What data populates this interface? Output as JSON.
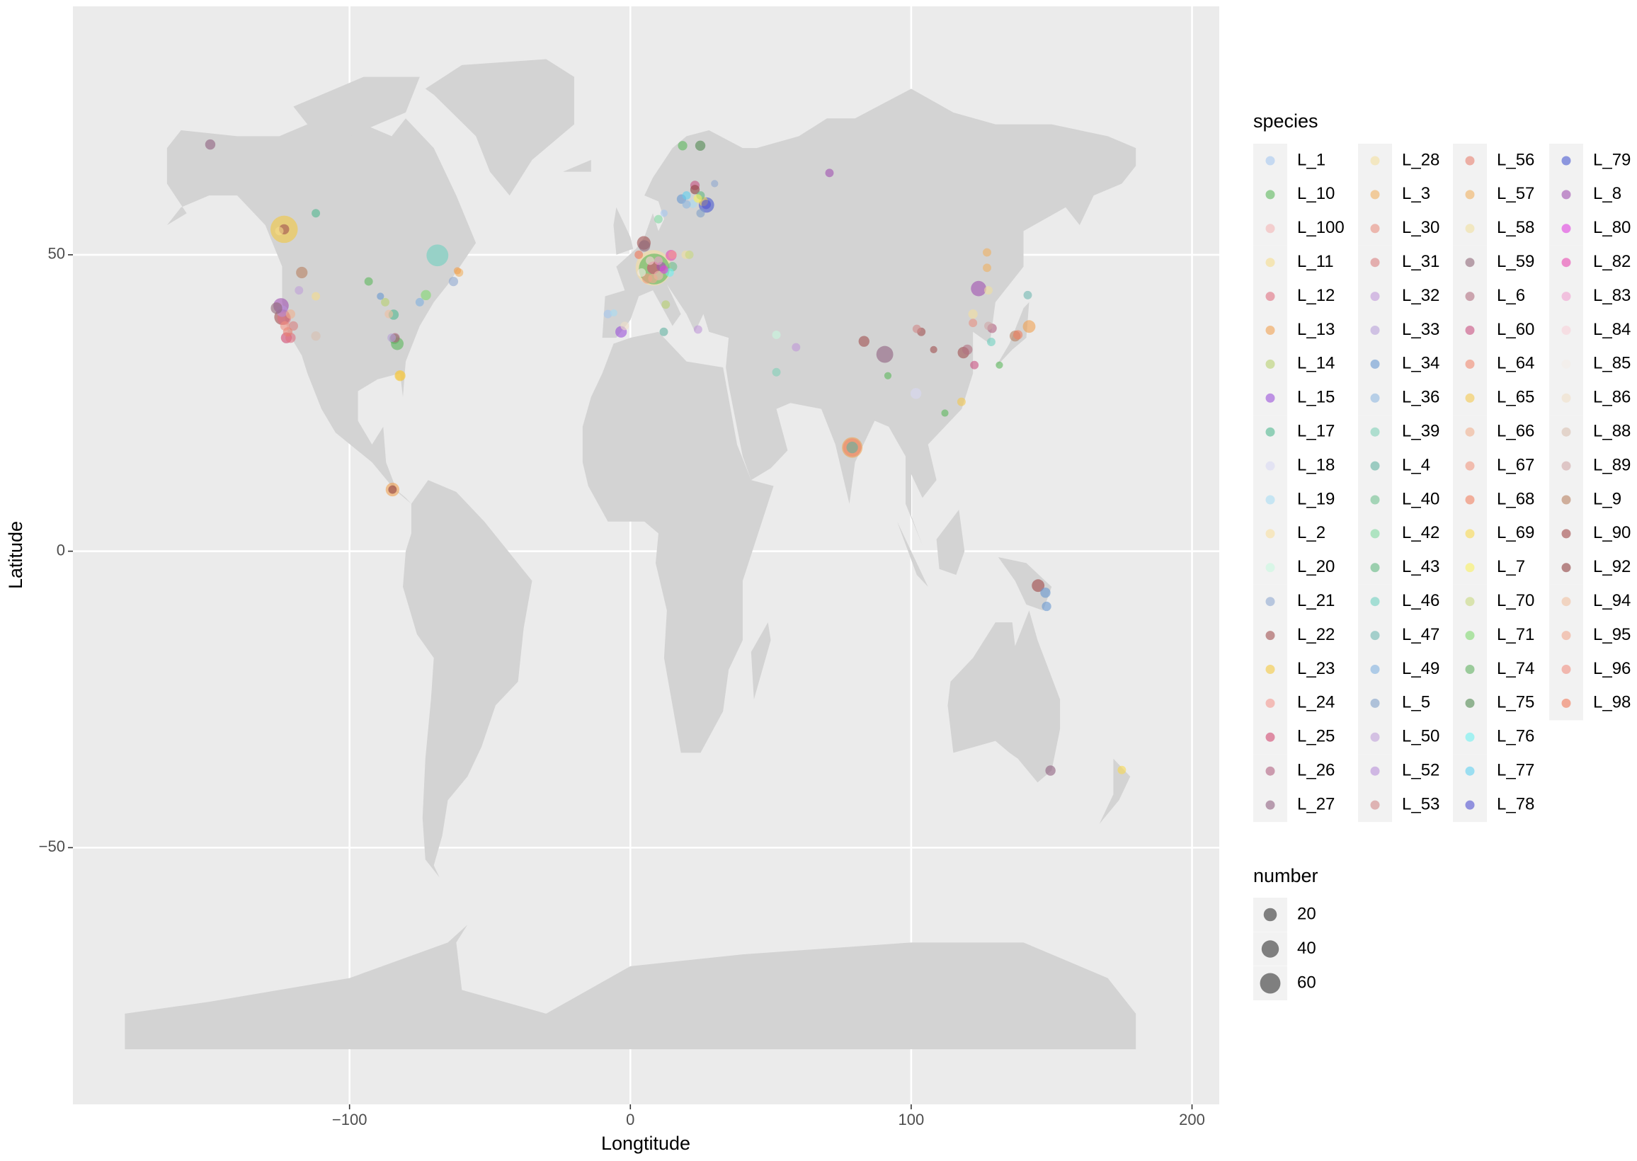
{
  "chart_data": {
    "type": "scatter",
    "x_label": "Longtitude",
    "y_label": "Latitude",
    "xlim": [
      -198.5,
      209.7
    ],
    "ylim": [
      -93.3,
      91.9
    ],
    "xticks": [
      {
        "value": -100,
        "label": "−100"
      },
      0,
      100,
      200
    ],
    "yticks": [
      {
        "value": -50,
        "label": "−50"
      },
      0,
      50
    ],
    "grid": true,
    "alpha": 0.6,
    "legend_title": "species",
    "size_legend": {
      "title": "number",
      "values": [
        20,
        40,
        60
      ]
    },
    "series": [
      {
        "name": "L_1",
        "color": "#a6c8f0",
        "x": [
          -8,
          12
        ],
        "values": [
          40,
          57
        ],
        "sizes": [
          2,
          1
        ]
      },
      {
        "name": "L_10",
        "color": "#5cb85c",
        "x": [
          -93.2,
          -83,
          8.5,
          18.6,
          91.7,
          112,
          131.4
        ],
        "values": [
          45.5,
          35,
          47.6,
          68.4,
          29.6,
          23.3,
          31.4
        ],
        "sizes": [
          2,
          8,
          80,
          3,
          1,
          1,
          1
        ]
      },
      {
        "name": "L_100",
        "color": "#f4b6b6",
        "x": [
          10
        ],
        "values": [
          46.5
        ],
        "sizes": [
          3
        ]
      },
      {
        "name": "L_11",
        "color": "#f5dc8c",
        "x": [
          -112,
          -125
        ],
        "values": [
          43,
          54
        ],
        "sizes": [
          2,
          2
        ]
      },
      {
        "name": "L_12",
        "color": "#e07080",
        "x": [
          -123.3,
          -121
        ],
        "values": [
          39.3,
          36
        ],
        "sizes": [
          10,
          4
        ]
      },
      {
        "name": "L_13",
        "color": "#f0a050",
        "x": [
          -84.7,
          -61.6,
          142,
          79
        ],
        "values": [
          10.4,
          47.3,
          37.9,
          17.5
        ],
        "sizes": [
          10,
          1,
          8,
          30
        ]
      },
      {
        "name": "L_14",
        "color": "#b8d070",
        "x": [
          -87.3,
          12.6
        ],
        "values": [
          42,
          41.6
        ],
        "sizes": [
          2,
          2
        ]
      },
      {
        "name": "L_15",
        "color": "#9a50d8",
        "x": [
          -3.3
        ],
        "values": [
          37
        ],
        "sizes": [
          6
        ]
      },
      {
        "name": "L_17",
        "color": "#50b890",
        "x": [
          -112,
          -84.3
        ],
        "values": [
          57,
          39.9
        ],
        "sizes": [
          2,
          4
        ]
      },
      {
        "name": "L_18",
        "color": "#d8d8f4",
        "x": [
          101.7
        ],
        "values": [
          26.6
        ],
        "sizes": [
          5
        ]
      },
      {
        "name": "L_19",
        "color": "#a8dcf4",
        "x": [
          -5.9,
          22.3
        ],
        "values": [
          40.2,
          58.6
        ],
        "sizes": [
          1,
          2
        ]
      },
      {
        "name": "L_2",
        "color": "#f8e0a0",
        "x": [
          8.2
        ],
        "values": [
          47.8
        ],
        "sizes": [
          110
        ]
      },
      {
        "name": "L_20",
        "color": "#c8f8e0",
        "x": [
          52
        ],
        "values": [
          36.5
        ],
        "sizes": [
          2
        ]
      },
      {
        "name": "L_21",
        "color": "#90a8d0",
        "x": [
          -63,
          30
        ],
        "values": [
          45.5,
          62
        ],
        "sizes": [
          3,
          1
        ]
      },
      {
        "name": "L_22",
        "color": "#a05050",
        "x": [
          -123.3,
          4.8,
          83.2,
          103.6,
          108,
          118.6,
          -124
        ],
        "values": [
          54.3,
          52,
          35.4,
          37,
          34,
          33.5,
          39.5
        ],
        "sizes": [
          4,
          10,
          5,
          2,
          1,
          6,
          15
        ]
      },
      {
        "name": "L_23",
        "color": "#f4c840",
        "x": [
          -123.3,
          -82
        ],
        "values": [
          54.3,
          29.6
        ],
        "sizes": [
          60,
          5
        ]
      },
      {
        "name": "L_24",
        "color": "#f49890",
        "x": [
          15
        ],
        "values": [
          50
        ],
        "sizes": [
          2
        ]
      },
      {
        "name": "L_25",
        "color": "#d04870",
        "x": [
          8.2,
          -122.5
        ],
        "values": [
          47.8,
          36
        ],
        "sizes": [
          8,
          5
        ]
      },
      {
        "name": "L_26",
        "color": "#b06080",
        "x": [
          128.8,
          -83.8
        ],
        "values": [
          37.6,
          36
        ],
        "sizes": [
          3,
          3
        ]
      },
      {
        "name": "L_27",
        "color": "#906080",
        "x": [
          -149.6,
          149.6,
          90.6
        ],
        "values": [
          68.6,
          -37,
          33.2
        ],
        "sizes": [
          4,
          4,
          18
        ]
      },
      {
        "name": "L_28",
        "color": "#f4e0a0",
        "x": [
          122
        ],
        "values": [
          40
        ],
        "sizes": [
          3
        ]
      },
      {
        "name": "L_3",
        "color": "#f0b060",
        "x": [
          127
        ],
        "values": [
          50.4
        ],
        "sizes": [
          2
        ]
      },
      {
        "name": "L_30",
        "color": "#e89080",
        "x": [
          122
        ],
        "values": [
          38.5
        ],
        "sizes": [
          2
        ]
      },
      {
        "name": "L_31",
        "color": "#d88080",
        "x": [
          -120
        ],
        "values": [
          38
        ],
        "sizes": [
          3
        ]
      },
      {
        "name": "L_32",
        "color": "#c098d8",
        "x": [
          24.1,
          59
        ],
        "values": [
          37.4,
          34.4
        ],
        "sizes": [
          2,
          2
        ]
      },
      {
        "name": "L_33",
        "color": "#b8a0d8",
        "x": [
          -85
        ],
        "values": [
          36
        ],
        "sizes": [
          2
        ]
      },
      {
        "name": "L_34",
        "color": "#6898d0",
        "x": [
          -89,
          18.2,
          147.8,
          148.2
        ],
        "values": [
          43,
          59.4,
          -7,
          -9.3
        ],
        "sizes": [
          1,
          3,
          4,
          3
        ]
      },
      {
        "name": "L_36",
        "color": "#90b8e0",
        "x": [
          20
        ],
        "values": [
          58.5
        ],
        "sizes": [
          2
        ]
      },
      {
        "name": "L_39",
        "color": "#80d0b8",
        "x": [
          52
        ],
        "values": [
          30.2
        ],
        "sizes": [
          2
        ]
      },
      {
        "name": "L_4",
        "color": "#60b0a0",
        "x": [
          11.9,
          79
        ],
        "values": [
          37,
          17.5
        ],
        "sizes": [
          2,
          6
        ]
      },
      {
        "name": "L_40",
        "color": "#70c090",
        "x": [
          15
        ],
        "values": [
          48
        ],
        "sizes": [
          3
        ]
      },
      {
        "name": "L_42",
        "color": "#80d8a0",
        "x": [
          10
        ],
        "values": [
          56
        ],
        "sizes": [
          2
        ]
      },
      {
        "name": "L_43",
        "color": "#60b880",
        "x": [
          25
        ],
        "values": [
          60
        ],
        "sizes": [
          2
        ]
      },
      {
        "name": "L_46",
        "color": "#70d0c0",
        "x": [
          -68.7,
          128.5
        ],
        "values": [
          49.9,
          35.3
        ],
        "sizes": [
          35,
          2
        ]
      },
      {
        "name": "L_47",
        "color": "#70b8b0",
        "x": [
          141.5
        ],
        "values": [
          43.2
        ],
        "sizes": [
          2
        ]
      },
      {
        "name": "L_49",
        "color": "#80b0e0",
        "x": [
          -75
        ],
        "values": [
          42
        ],
        "sizes": [
          2
        ]
      },
      {
        "name": "L_5",
        "color": "#80a0c8",
        "x": [
          25
        ],
        "values": [
          57
        ],
        "sizes": [
          2
        ]
      },
      {
        "name": "L_50",
        "color": "#c0a0d8",
        "x": [
          -118
        ],
        "values": [
          44
        ],
        "sizes": [
          2
        ]
      },
      {
        "name": "L_52",
        "color": "#b890d8",
        "x": [
          -124
        ],
        "values": [
          40.5
        ],
        "sizes": [
          6
        ]
      },
      {
        "name": "L_53",
        "color": "#d08888",
        "x": [
          102
        ],
        "values": [
          37.5
        ],
        "sizes": [
          2
        ]
      },
      {
        "name": "L_56",
        "color": "#e88070",
        "x": [
          -122
        ],
        "values": [
          37
        ],
        "sizes": [
          3
        ]
      },
      {
        "name": "L_57",
        "color": "#f0b060",
        "x": [
          127,
          -61
        ],
        "values": [
          47.8,
          47
        ],
        "sizes": [
          2,
          2
        ]
      },
      {
        "name": "L_58",
        "color": "#f0e0a0",
        "x": [
          19.7,
          127.5
        ],
        "values": [
          50,
          44
        ],
        "sizes": [
          2,
          2
        ]
      },
      {
        "name": "L_59",
        "color": "#906878",
        "x": [
          5,
          -126
        ],
        "values": [
          51.5,
          41
        ],
        "sizes": [
          6,
          6
        ]
      },
      {
        "name": "L_6",
        "color": "#b07080",
        "x": [
          120
        ],
        "values": [
          34
        ],
        "sizes": [
          4
        ]
      },
      {
        "name": "L_60",
        "color": "#c85080",
        "x": [
          122.5,
          23
        ],
        "values": [
          31.4,
          61.7
        ],
        "sizes": [
          2,
          3
        ]
      },
      {
        "name": "L_64",
        "color": "#f08870",
        "x": [
          79
        ],
        "values": [
          17.5
        ],
        "sizes": [
          22
        ]
      },
      {
        "name": "L_65",
        "color": "#f4c850",
        "x": [
          117.9,
          -82
        ],
        "values": [
          25.2,
          29.6
        ],
        "sizes": [
          2,
          3
        ]
      },
      {
        "name": "L_66",
        "color": "#f0b090",
        "x": [
          -121
        ],
        "values": [
          40
        ],
        "sizes": [
          3
        ]
      },
      {
        "name": "L_67",
        "color": "#f09880",
        "x": [
          6
        ],
        "values": [
          46
        ],
        "sizes": [
          4
        ]
      },
      {
        "name": "L_68",
        "color": "#f08060",
        "x": [
          138
        ],
        "values": [
          36.5
        ],
        "sizes": [
          3
        ]
      },
      {
        "name": "L_69",
        "color": "#f8d850",
        "x": [
          175,
          26
        ],
        "values": [
          -36.9,
          59
        ],
        "sizes": [
          2,
          3
        ]
      },
      {
        "name": "L_7",
        "color": "#f8f060",
        "x": [
          24
        ],
        "values": [
          59.5
        ],
        "sizes": [
          2
        ]
      },
      {
        "name": "L_70",
        "color": "#c8d880",
        "x": [
          21
        ],
        "values": [
          50
        ],
        "sizes": [
          2
        ]
      },
      {
        "name": "L_71",
        "color": "#80d870",
        "x": [
          -72.8
        ],
        "values": [
          43.2
        ],
        "sizes": [
          4
        ]
      },
      {
        "name": "L_74",
        "color": "#60b060",
        "x": [
          -84
        ],
        "values": [
          35.8
        ],
        "sizes": [
          4
        ]
      },
      {
        "name": "L_75",
        "color": "#508850",
        "x": [
          24.9
        ],
        "values": [
          68.4
        ],
        "sizes": [
          4
        ]
      },
      {
        "name": "L_76",
        "color": "#70f0f0",
        "x": [
          14
        ],
        "values": [
          47
        ],
        "sizes": [
          2
        ]
      },
      {
        "name": "L_77",
        "color": "#60d0f0",
        "x": [
          20
        ],
        "values": [
          60
        ],
        "sizes": [
          2
        ]
      },
      {
        "name": "L_78",
        "color": "#5050d0",
        "x": [
          27
        ],
        "values": [
          58.5
        ],
        "sizes": [
          3
        ]
      },
      {
        "name": "L_79",
        "color": "#4858d0",
        "x": [
          27.1
        ],
        "values": [
          58.4
        ],
        "sizes": [
          14
        ]
      },
      {
        "name": "L_8",
        "color": "#a050b0",
        "x": [
          -124.4,
          70.9,
          124,
          11
        ],
        "values": [
          41.4,
          63.8,
          44.3,
          48
        ],
        "sizes": [
          14,
          2,
          14,
          3
        ]
      },
      {
        "name": "L_80",
        "color": "#e040e0",
        "x": [
          12
        ],
        "values": [
          47.5
        ],
        "sizes": [
          2
        ]
      },
      {
        "name": "L_82",
        "color": "#e848b0",
        "x": [
          14.5
        ],
        "values": [
          49.9
        ],
        "sizes": [
          5
        ]
      },
      {
        "name": "L_83",
        "color": "#f0a0d0",
        "x": [
          10
        ],
        "values": [
          49
        ],
        "sizes": [
          2
        ]
      },
      {
        "name": "L_84",
        "color": "#f8d0d8",
        "x": [
          7
        ],
        "values": [
          49
        ],
        "sizes": [
          2
        ]
      },
      {
        "name": "L_85",
        "color": "#f4ece8",
        "x": [
          4
        ],
        "values": [
          47
        ],
        "sizes": [
          2
        ]
      },
      {
        "name": "L_86",
        "color": "#f0e0c8",
        "x": [
          -2
        ],
        "values": [
          38
        ],
        "sizes": [
          2
        ]
      },
      {
        "name": "L_88",
        "color": "#d8c0b0",
        "x": [
          -112
        ],
        "values": [
          36.3
        ],
        "sizes": [
          3
        ]
      },
      {
        "name": "L_89",
        "color": "#d0a8a8",
        "x": [
          127.5
        ],
        "values": [
          38
        ],
        "sizes": [
          2
        ]
      },
      {
        "name": "L_9",
        "color": "#b88060",
        "x": [
          -117,
          137
        ],
        "values": [
          47,
          36.3
        ],
        "sizes": [
          6,
          5
        ]
      },
      {
        "name": "L_90",
        "color": "#a04848",
        "x": [
          145.2
        ],
        "values": [
          -5.8
        ],
        "sizes": [
          8
        ]
      },
      {
        "name": "L_92",
        "color": "#904040",
        "x": [
          23,
          -84.7
        ],
        "values": [
          61,
          10.4
        ],
        "sizes": [
          3,
          2
        ]
      },
      {
        "name": "L_94",
        "color": "#f0c0a0",
        "x": [
          -86
        ],
        "values": [
          40
        ],
        "sizes": [
          2
        ]
      },
      {
        "name": "L_95",
        "color": "#f0a890",
        "x": [
          8
        ],
        "values": [
          46
        ],
        "sizes": [
          3
        ]
      },
      {
        "name": "L_96",
        "color": "#f09080",
        "x": [
          -123
        ],
        "values": [
          38
        ],
        "sizes": [
          3
        ]
      },
      {
        "name": "L_98",
        "color": "#f07858",
        "x": [
          3
        ],
        "values": [
          50
        ],
        "sizes": [
          2
        ]
      }
    ]
  }
}
